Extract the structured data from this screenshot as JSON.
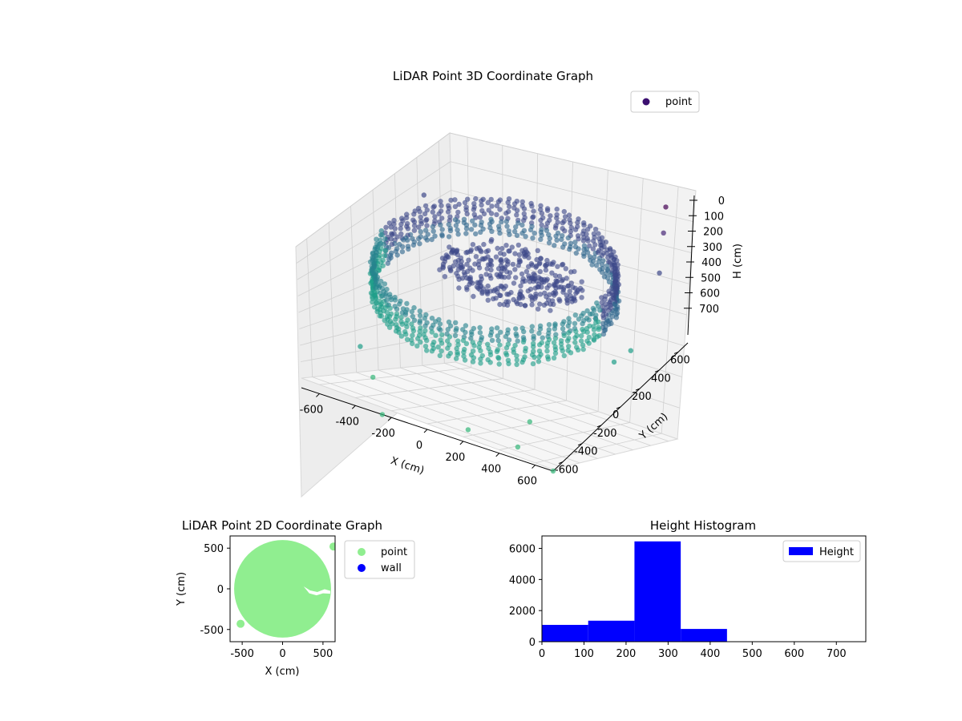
{
  "chart_data": [
    {
      "type": "scatter3d",
      "title": "LiDAR Point 3D Coordinate Graph",
      "xlabel": "X (cm)",
      "ylabel": "Y (cm)",
      "zlabel": "H (cm)",
      "xlim": [
        -700,
        700
      ],
      "ylim": [
        -700,
        700
      ],
      "zlim": [
        0,
        800
      ],
      "z_inverted": true,
      "xticks": [
        -600,
        -400,
        -200,
        0,
        200,
        400,
        600
      ],
      "yticks": [
        -600,
        -400,
        -200,
        0,
        200,
        400,
        600
      ],
      "zticks": [
        0,
        100,
        200,
        300,
        400,
        500,
        600,
        700
      ],
      "legend": [
        {
          "label": "point",
          "color": "#3b0f70"
        }
      ],
      "legend_position": "top-right",
      "colormap": "viridis (colored by height)",
      "structure": {
        "wall_ring_radius_cm": 600,
        "wall_height_range_cm": [
          220,
          420
        ],
        "floor_cluster_center_cm": [
          0,
          0
        ],
        "floor_cluster_height_cm": 300
      },
      "outliers": [
        {
          "x": -650,
          "y": 480,
          "h": 300
        },
        {
          "x": 620,
          "y": 620,
          "h": 10
        },
        {
          "x": 640,
          "y": 560,
          "h": 120
        },
        {
          "x": 660,
          "y": 480,
          "h": 300
        },
        {
          "x": 650,
          "y": 200,
          "h": 600
        },
        {
          "x": 600,
          "y": 120,
          "h": 640
        },
        {
          "x": -560,
          "y": -350,
          "h": 700
        },
        {
          "x": -420,
          "y": -480,
          "h": 760
        },
        {
          "x": 200,
          "y": -650,
          "h": 760
        },
        {
          "x": 420,
          "y": -420,
          "h": 760
        },
        {
          "x": 450,
          "y": -600,
          "h": 800
        },
        {
          "x": 700,
          "y": -700,
          "h": 800
        },
        {
          "x": -250,
          "y": -700,
          "h": 800
        }
      ]
    },
    {
      "type": "scatter",
      "title": "LiDAR Point 2D Coordinate Graph",
      "xlabel": "X (cm)",
      "ylabel": "Y (cm)",
      "xlim": [
        -650,
        650
      ],
      "ylim": [
        -650,
        650
      ],
      "xticks": [
        -500,
        0,
        500
      ],
      "yticks": [
        -500,
        0,
        500
      ],
      "series": [
        {
          "name": "point",
          "color": "#90ee90",
          "shape": "filled disk",
          "center": [
            0,
            0
          ],
          "radius": 600
        },
        {
          "name": "wall",
          "color": "#0000ff",
          "points": []
        }
      ],
      "legend_position": "outside-right"
    },
    {
      "type": "bar",
      "title": "Height Histogram",
      "xlim": [
        0,
        770
      ],
      "ylim": [
        0,
        6800
      ],
      "xticks": [
        0,
        100,
        200,
        300,
        400,
        500,
        600,
        700
      ],
      "yticks": [
        0,
        2000,
        4000,
        6000
      ],
      "bins": [
        {
          "x0": 0,
          "x1": 110,
          "count": 1080
        },
        {
          "x0": 110,
          "x1": 220,
          "count": 1350
        },
        {
          "x0": 220,
          "x1": 330,
          "count": 6450
        },
        {
          "x0": 330,
          "x1": 440,
          "count": 820
        },
        {
          "x0": 440,
          "x1": 550,
          "count": 0
        },
        {
          "x0": 550,
          "x1": 660,
          "count": 0
        },
        {
          "x0": 660,
          "x1": 770,
          "count": 0
        }
      ],
      "series": [
        {
          "name": "Height",
          "color": "#0000ff"
        }
      ],
      "legend_position": "top-right"
    }
  ]
}
